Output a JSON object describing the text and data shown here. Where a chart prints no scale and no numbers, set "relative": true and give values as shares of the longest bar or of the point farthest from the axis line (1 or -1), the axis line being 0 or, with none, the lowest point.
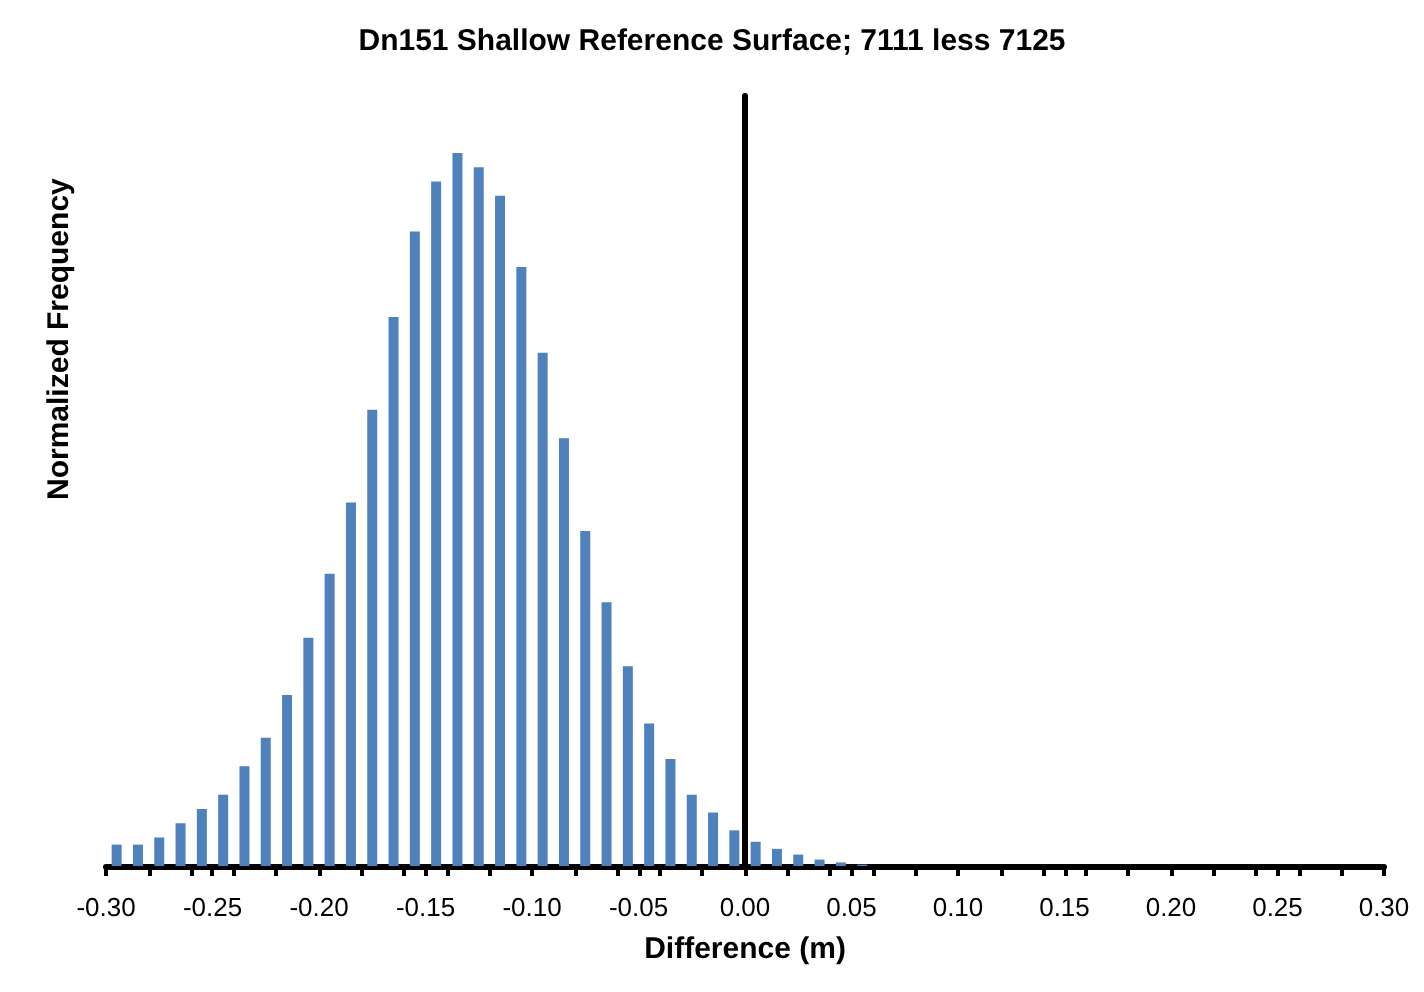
{
  "chart_data": {
    "type": "bar",
    "title": "Dn151 Shallow Reference Surface; 7111 less 7125",
    "xlabel": "Difference (m)",
    "ylabel": "Normalized Frequency",
    "relative": true,
    "color": "#4f81bd",
    "tick_labels": "x",
    "x": [
      -0.295,
      -0.285,
      -0.275,
      -0.265,
      -0.255,
      -0.245,
      -0.235,
      -0.225,
      -0.215,
      -0.205,
      -0.195,
      -0.185,
      -0.175,
      -0.165,
      -0.155,
      -0.145,
      -0.135,
      -0.125,
      -0.115,
      -0.105,
      -0.095,
      -0.085,
      -0.075,
      -0.065,
      -0.055,
      -0.045,
      -0.035,
      -0.025,
      -0.015,
      -0.005,
      0.005,
      0.015,
      0.025,
      0.035,
      0.045,
      0.055
    ],
    "values": [
      0.03,
      0.03,
      0.04,
      0.06,
      0.08,
      0.1,
      0.14,
      0.18,
      0.24,
      0.32,
      0.41,
      0.51,
      0.64,
      0.77,
      0.89,
      0.96,
      1,
      0.98,
      0.94,
      0.84,
      0.72,
      0.6,
      0.47,
      0.37,
      0.28,
      0.2,
      0.15,
      0.1,
      0.075,
      0.05,
      0.034,
      0.024,
      0.016,
      0.009,
      0.005,
      0.002
    ],
    "xlim": [
      -0.3,
      0.3
    ],
    "xticks": [
      {
        "value": -0.3,
        "label": "-0.30"
      },
      {
        "value": -0.25,
        "label": "-0.25"
      },
      {
        "value": -0.2,
        "label": "-0.20"
      },
      {
        "value": -0.15,
        "label": "-0.15"
      },
      {
        "value": -0.1,
        "label": "-0.10"
      },
      {
        "value": -0.05,
        "label": "-0.05"
      },
      {
        "value": 0,
        "label": "0.00"
      },
      {
        "value": 0.05,
        "label": "0.05"
      },
      {
        "value": 0.1,
        "label": "0.10"
      },
      {
        "value": 0.15,
        "label": "0.15"
      },
      {
        "value": 0.2,
        "label": "0.20"
      },
      {
        "value": 0.25,
        "label": "0.25"
      },
      {
        "value": 0.3,
        "label": "0.30"
      }
    ]
  }
}
